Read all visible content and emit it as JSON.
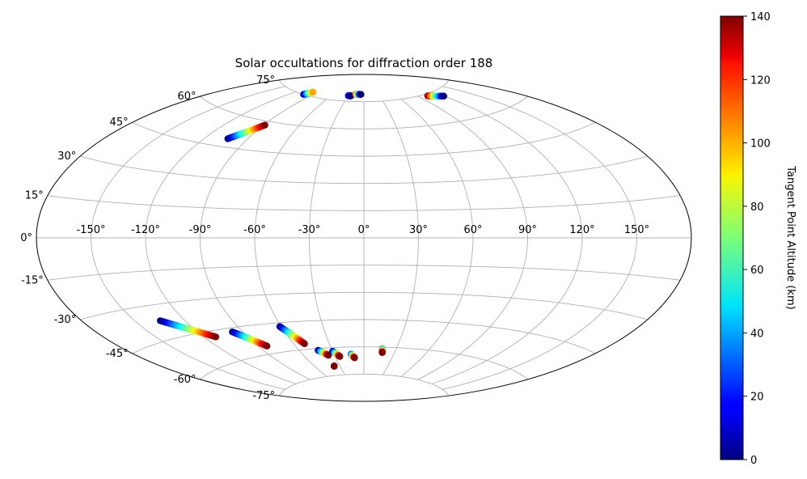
{
  "chart_data": {
    "type": "scatter",
    "projection": "aitoff",
    "title": "Solar occultations for diffraction order 188",
    "xlabel": "",
    "ylabel": "",
    "grid": true,
    "lon_ticks": [
      -150,
      -120,
      -90,
      -60,
      -30,
      0,
      30,
      60,
      90,
      120,
      150
    ],
    "lon_tick_labels": [
      "-150°",
      "-120°",
      "-90°",
      "-60°",
      "-30°",
      "0°",
      "30°",
      "60°",
      "90°",
      "120°",
      "150°"
    ],
    "lat_ticks": [
      -75,
      -60,
      -45,
      -30,
      -15,
      0,
      15,
      30,
      45,
      60,
      75
    ],
    "lat_tick_labels": [
      "-75°",
      "-60°",
      "-45°",
      "-30°",
      "-15°",
      "0°",
      "15°",
      "30°",
      "45°",
      "60°",
      "75°"
    ],
    "colorbar": {
      "label": "Tangent Point Altitude (km)",
      "colormap": "jet",
      "range": [
        0,
        140
      ],
      "ticks": [
        0,
        20,
        40,
        60,
        80,
        100,
        120,
        140
      ],
      "tick_labels": [
        "0",
        "20",
        "40",
        "60",
        "80",
        "100",
        "120",
        "140"
      ]
    },
    "tracks": [
      {
        "lon_start": -135,
        "lat_start": -37,
        "lon_end": -112,
        "lat_end": -48,
        "alt_start": 0,
        "alt_end": 140
      },
      {
        "lon_start": -97,
        "lat_start": -47,
        "lon_end": -83,
        "lat_end": -56,
        "alt_start": 0,
        "alt_end": 140
      },
      {
        "lon_start": -61,
        "lat_start": -47,
        "lon_end": -51,
        "lat_end": -57,
        "alt_start": 0,
        "alt_end": 140
      },
      {
        "lon_start": -43,
        "lat_start": -61,
        "lon_end": -36,
        "lat_end": -64,
        "alt_start": 0,
        "alt_end": 140
      },
      {
        "lon_start": -30,
        "lat_start": -62,
        "lon_end": -25,
        "lat_end": -65,
        "alt_start": 0,
        "alt_end": 140
      },
      {
        "lon_start": -13,
        "lat_start": -64,
        "lon_end": -10,
        "lat_end": -66,
        "alt_start": 20,
        "alt_end": 140
      },
      {
        "lon_start": 17,
        "lat_start": -61,
        "lon_end": 18,
        "lat_end": -63,
        "alt_start": 30,
        "alt_end": 140
      },
      {
        "lon_start": -37,
        "lat_start": -70,
        "lon_end": -37,
        "lat_end": -70,
        "alt_start": 140,
        "alt_end": 140
      },
      {
        "lon_start": -104,
        "lat_start": 49,
        "lon_end": -89,
        "lat_end": 58,
        "alt_start": 0,
        "alt_end": 140
      },
      {
        "lon_start": -103,
        "lat_start": 75,
        "lon_end": -98,
        "lat_end": 77,
        "alt_start": 0,
        "alt_end": 100
      },
      {
        "lon_start": -30,
        "lat_start": 78,
        "lon_end": -25,
        "lat_end": 78,
        "alt_start": 30,
        "alt_end": 0
      },
      {
        "lon_start": -17,
        "lat_start": 79,
        "lon_end": -6,
        "lat_end": 79,
        "alt_start": 120,
        "alt_end": 0
      },
      {
        "lon_start": 103,
        "lat_start": 74,
        "lon_end": 120,
        "lat_end": 72,
        "alt_start": 140,
        "alt_end": 0
      }
    ]
  }
}
